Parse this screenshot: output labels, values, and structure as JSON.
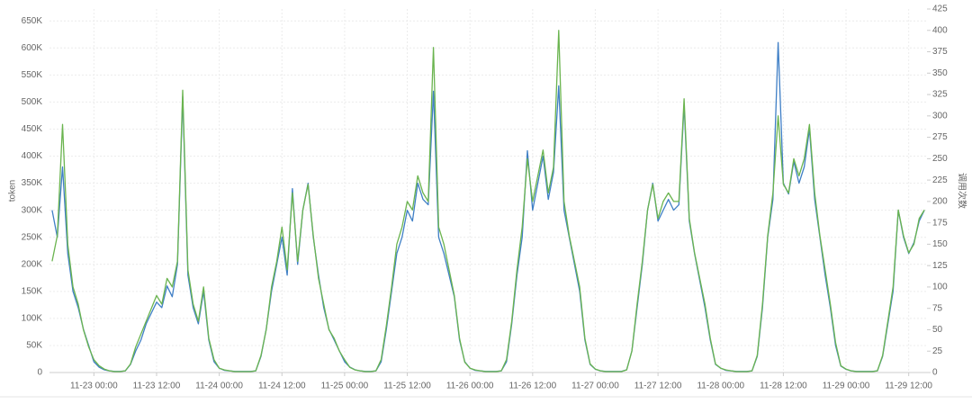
{
  "chart_data": {
    "type": "line",
    "y_label": "token",
    "y2_label": "调用次数",
    "xlim": [
      "11-22 15:30",
      "11-29 15:30"
    ],
    "xticks": [
      "11-23 00:00",
      "11-23 12:00",
      "11-24 00:00",
      "11-24 12:00",
      "11-25 00:00",
      "11-25 12:00",
      "11-26 00:00",
      "11-26 12:00",
      "11-27 00:00",
      "11-27 12:00",
      "11-28 00:00",
      "11-28 12:00",
      "11-29 00:00",
      "11-29 12:00"
    ],
    "ylim": [
      0,
      672000
    ],
    "yticks": [
      0,
      {
        "value": 50000,
        "label": "50K"
      },
      {
        "value": 100000,
        "label": "100K"
      },
      {
        "value": 150000,
        "label": "150K"
      },
      {
        "value": 200000,
        "label": "200K"
      },
      {
        "value": 250000,
        "label": "250K"
      },
      {
        "value": 300000,
        "label": "300K"
      },
      {
        "value": 350000,
        "label": "350K"
      },
      {
        "value": 400000,
        "label": "400K"
      },
      {
        "value": 450000,
        "label": "450K"
      },
      {
        "value": 500000,
        "label": "500K"
      },
      {
        "value": 550000,
        "label": "550K"
      },
      {
        "value": 600000,
        "label": "600K"
      },
      {
        "value": 650000,
        "label": "650K"
      }
    ],
    "y2lim": [
      0,
      425
    ],
    "y2ticks": [
      0,
      25,
      50,
      75,
      100,
      125,
      150,
      175,
      200,
      225,
      250,
      275,
      300,
      325,
      350,
      375,
      400,
      425
    ],
    "grid": true,
    "x": [
      "11-22 16:00",
      "11-22 17:00",
      "11-22 18:00",
      "11-22 19:00",
      "11-22 20:00",
      "11-22 21:00",
      "11-22 22:00",
      "11-22 23:00",
      "11-23 00:00",
      "11-23 01:00",
      "11-23 02:00",
      "11-23 03:00",
      "11-23 04:00",
      "11-23 05:00",
      "11-23 06:00",
      "11-23 07:00",
      "11-23 08:00",
      "11-23 09:00",
      "11-23 10:00",
      "11-23 11:00",
      "11-23 12:00",
      "11-23 13:00",
      "11-23 14:00",
      "11-23 15:00",
      "11-23 16:00",
      "11-23 17:00",
      "11-23 18:00",
      "11-23 19:00",
      "11-23 20:00",
      "11-23 21:00",
      "11-23 22:00",
      "11-23 23:00",
      "11-24 00:00",
      "11-24 01:00",
      "11-24 02:00",
      "11-24 03:00",
      "11-24 04:00",
      "11-24 05:00",
      "11-24 06:00",
      "11-24 07:00",
      "11-24 08:00",
      "11-24 09:00",
      "11-24 10:00",
      "11-24 11:00",
      "11-24 12:00",
      "11-24 13:00",
      "11-24 14:00",
      "11-24 15:00",
      "11-24 16:00",
      "11-24 17:00",
      "11-24 18:00",
      "11-24 19:00",
      "11-24 20:00",
      "11-24 21:00",
      "11-24 22:00",
      "11-24 23:00",
      "11-25 00:00",
      "11-25 01:00",
      "11-25 02:00",
      "11-25 03:00",
      "11-25 04:00",
      "11-25 05:00",
      "11-25 06:00",
      "11-25 07:00",
      "11-25 08:00",
      "11-25 09:00",
      "11-25 10:00",
      "11-25 11:00",
      "11-25 12:00",
      "11-25 13:00",
      "11-25 14:00",
      "11-25 15:00",
      "11-25 16:00",
      "11-25 17:00",
      "11-25 18:00",
      "11-25 19:00",
      "11-25 20:00",
      "11-25 21:00",
      "11-25 22:00",
      "11-25 23:00",
      "11-26 00:00",
      "11-26 01:00",
      "11-26 02:00",
      "11-26 03:00",
      "11-26 04:00",
      "11-26 05:00",
      "11-26 06:00",
      "11-26 07:00",
      "11-26 08:00",
      "11-26 09:00",
      "11-26 10:00",
      "11-26 11:00",
      "11-26 12:00",
      "11-26 13:00",
      "11-26 14:00",
      "11-26 15:00",
      "11-26 16:00",
      "11-26 17:00",
      "11-26 18:00",
      "11-26 19:00",
      "11-26 20:00",
      "11-26 21:00",
      "11-26 22:00",
      "11-26 23:00",
      "11-27 00:00",
      "11-27 01:00",
      "11-27 02:00",
      "11-27 03:00",
      "11-27 04:00",
      "11-27 05:00",
      "11-27 06:00",
      "11-27 07:00",
      "11-27 08:00",
      "11-27 09:00",
      "11-27 10:00",
      "11-27 11:00",
      "11-27 12:00",
      "11-27 13:00",
      "11-27 14:00",
      "11-27 15:00",
      "11-27 16:00",
      "11-27 17:00",
      "11-27 18:00",
      "11-27 19:00",
      "11-27 20:00",
      "11-27 21:00",
      "11-27 22:00",
      "11-27 23:00",
      "11-28 00:00",
      "11-28 01:00",
      "11-28 02:00",
      "11-28 03:00",
      "11-28 04:00",
      "11-28 05:00",
      "11-28 06:00",
      "11-28 07:00",
      "11-28 08:00",
      "11-28 09:00",
      "11-28 10:00",
      "11-28 11:00",
      "11-28 12:00",
      "11-28 13:00",
      "11-28 14:00",
      "11-28 15:00",
      "11-28 16:00",
      "11-28 17:00",
      "11-28 18:00",
      "11-28 19:00",
      "11-28 20:00",
      "11-28 21:00",
      "11-28 22:00",
      "11-28 23:00",
      "11-29 00:00",
      "11-29 01:00",
      "11-29 02:00",
      "11-29 03:00",
      "11-29 04:00",
      "11-29 05:00",
      "11-29 06:00",
      "11-29 07:00",
      "11-29 08:00",
      "11-29 09:00",
      "11-29 10:00",
      "11-29 11:00",
      "11-29 12:00",
      "11-29 13:00",
      "11-29 14:00",
      "11-29 15:00"
    ],
    "series": [
      {
        "color": "#3f7fc6",
        "axis": "y",
        "values": [
          300000,
          250000,
          380000,
          220000,
          150000,
          120000,
          80000,
          50000,
          20000,
          10000,
          5000,
          3000,
          2000,
          2000,
          3000,
          15000,
          40000,
          60000,
          90000,
          110000,
          130000,
          120000,
          160000,
          140000,
          200000,
          510000,
          180000,
          120000,
          90000,
          150000,
          60000,
          20000,
          8000,
          4000,
          3000,
          2000,
          2000,
          2000,
          2000,
          3000,
          30000,
          80000,
          150000,
          200000,
          250000,
          180000,
          340000,
          200000,
          300000,
          350000,
          250000,
          180000,
          120000,
          80000,
          60000,
          40000,
          20000,
          10000,
          5000,
          3000,
          2000,
          2000,
          3000,
          20000,
          80000,
          150000,
          220000,
          250000,
          300000,
          280000,
          350000,
          320000,
          310000,
          520000,
          250000,
          220000,
          180000,
          140000,
          60000,
          20000,
          8000,
          4000,
          3000,
          2000,
          2000,
          2000,
          3000,
          20000,
          90000,
          180000,
          250000,
          410000,
          300000,
          350000,
          400000,
          320000,
          370000,
          530000,
          300000,
          250000,
          200000,
          150000,
          60000,
          15000,
          6000,
          3000,
          2000,
          2000,
          2000,
          2000,
          5000,
          40000,
          120000,
          200000,
          300000,
          350000,
          280000,
          300000,
          320000,
          300000,
          310000,
          495000,
          280000,
          220000,
          170000,
          120000,
          60000,
          15000,
          8000,
          4000,
          3000,
          2000,
          2000,
          2000,
          3000,
          30000,
          120000,
          250000,
          320000,
          610000,
          350000,
          330000,
          390000,
          350000,
          380000,
          450000,
          320000,
          250000,
          180000,
          120000,
          50000,
          12000,
          6000,
          3000,
          2000,
          2000,
          2000,
          2000,
          3000,
          30000,
          90000,
          150000,
          300000,
          250000,
          220000,
          240000,
          280000,
          300000
        ]
      },
      {
        "color": "#6ab44f",
        "axis": "y2",
        "values": [
          130,
          160,
          290,
          150,
          100,
          80,
          50,
          30,
          15,
          8,
          4,
          2,
          1,
          1,
          2,
          10,
          30,
          45,
          60,
          75,
          90,
          80,
          110,
          100,
          130,
          330,
          120,
          80,
          60,
          100,
          40,
          15,
          5,
          3,
          2,
          1,
          1,
          1,
          1,
          2,
          20,
          50,
          100,
          130,
          170,
          120,
          210,
          130,
          190,
          220,
          160,
          110,
          80,
          50,
          40,
          25,
          15,
          6,
          3,
          2,
          1,
          1,
          2,
          15,
          55,
          100,
          150,
          170,
          200,
          190,
          230,
          210,
          200,
          380,
          170,
          150,
          120,
          90,
          40,
          12,
          5,
          3,
          2,
          1,
          1,
          1,
          2,
          15,
          60,
          120,
          170,
          250,
          200,
          230,
          260,
          210,
          240,
          400,
          200,
          160,
          130,
          100,
          40,
          10,
          4,
          2,
          1,
          1,
          1,
          1,
          3,
          25,
          80,
          130,
          190,
          220,
          180,
          200,
          210,
          200,
          200,
          320,
          180,
          140,
          110,
          80,
          40,
          10,
          5,
          3,
          2,
          1,
          1,
          1,
          2,
          20,
          80,
          160,
          210,
          300,
          220,
          210,
          250,
          230,
          250,
          290,
          210,
          160,
          120,
          80,
          35,
          8,
          4,
          2,
          1,
          1,
          1,
          1,
          2,
          20,
          60,
          100,
          190,
          160,
          140,
          150,
          180,
          190
        ]
      }
    ]
  }
}
